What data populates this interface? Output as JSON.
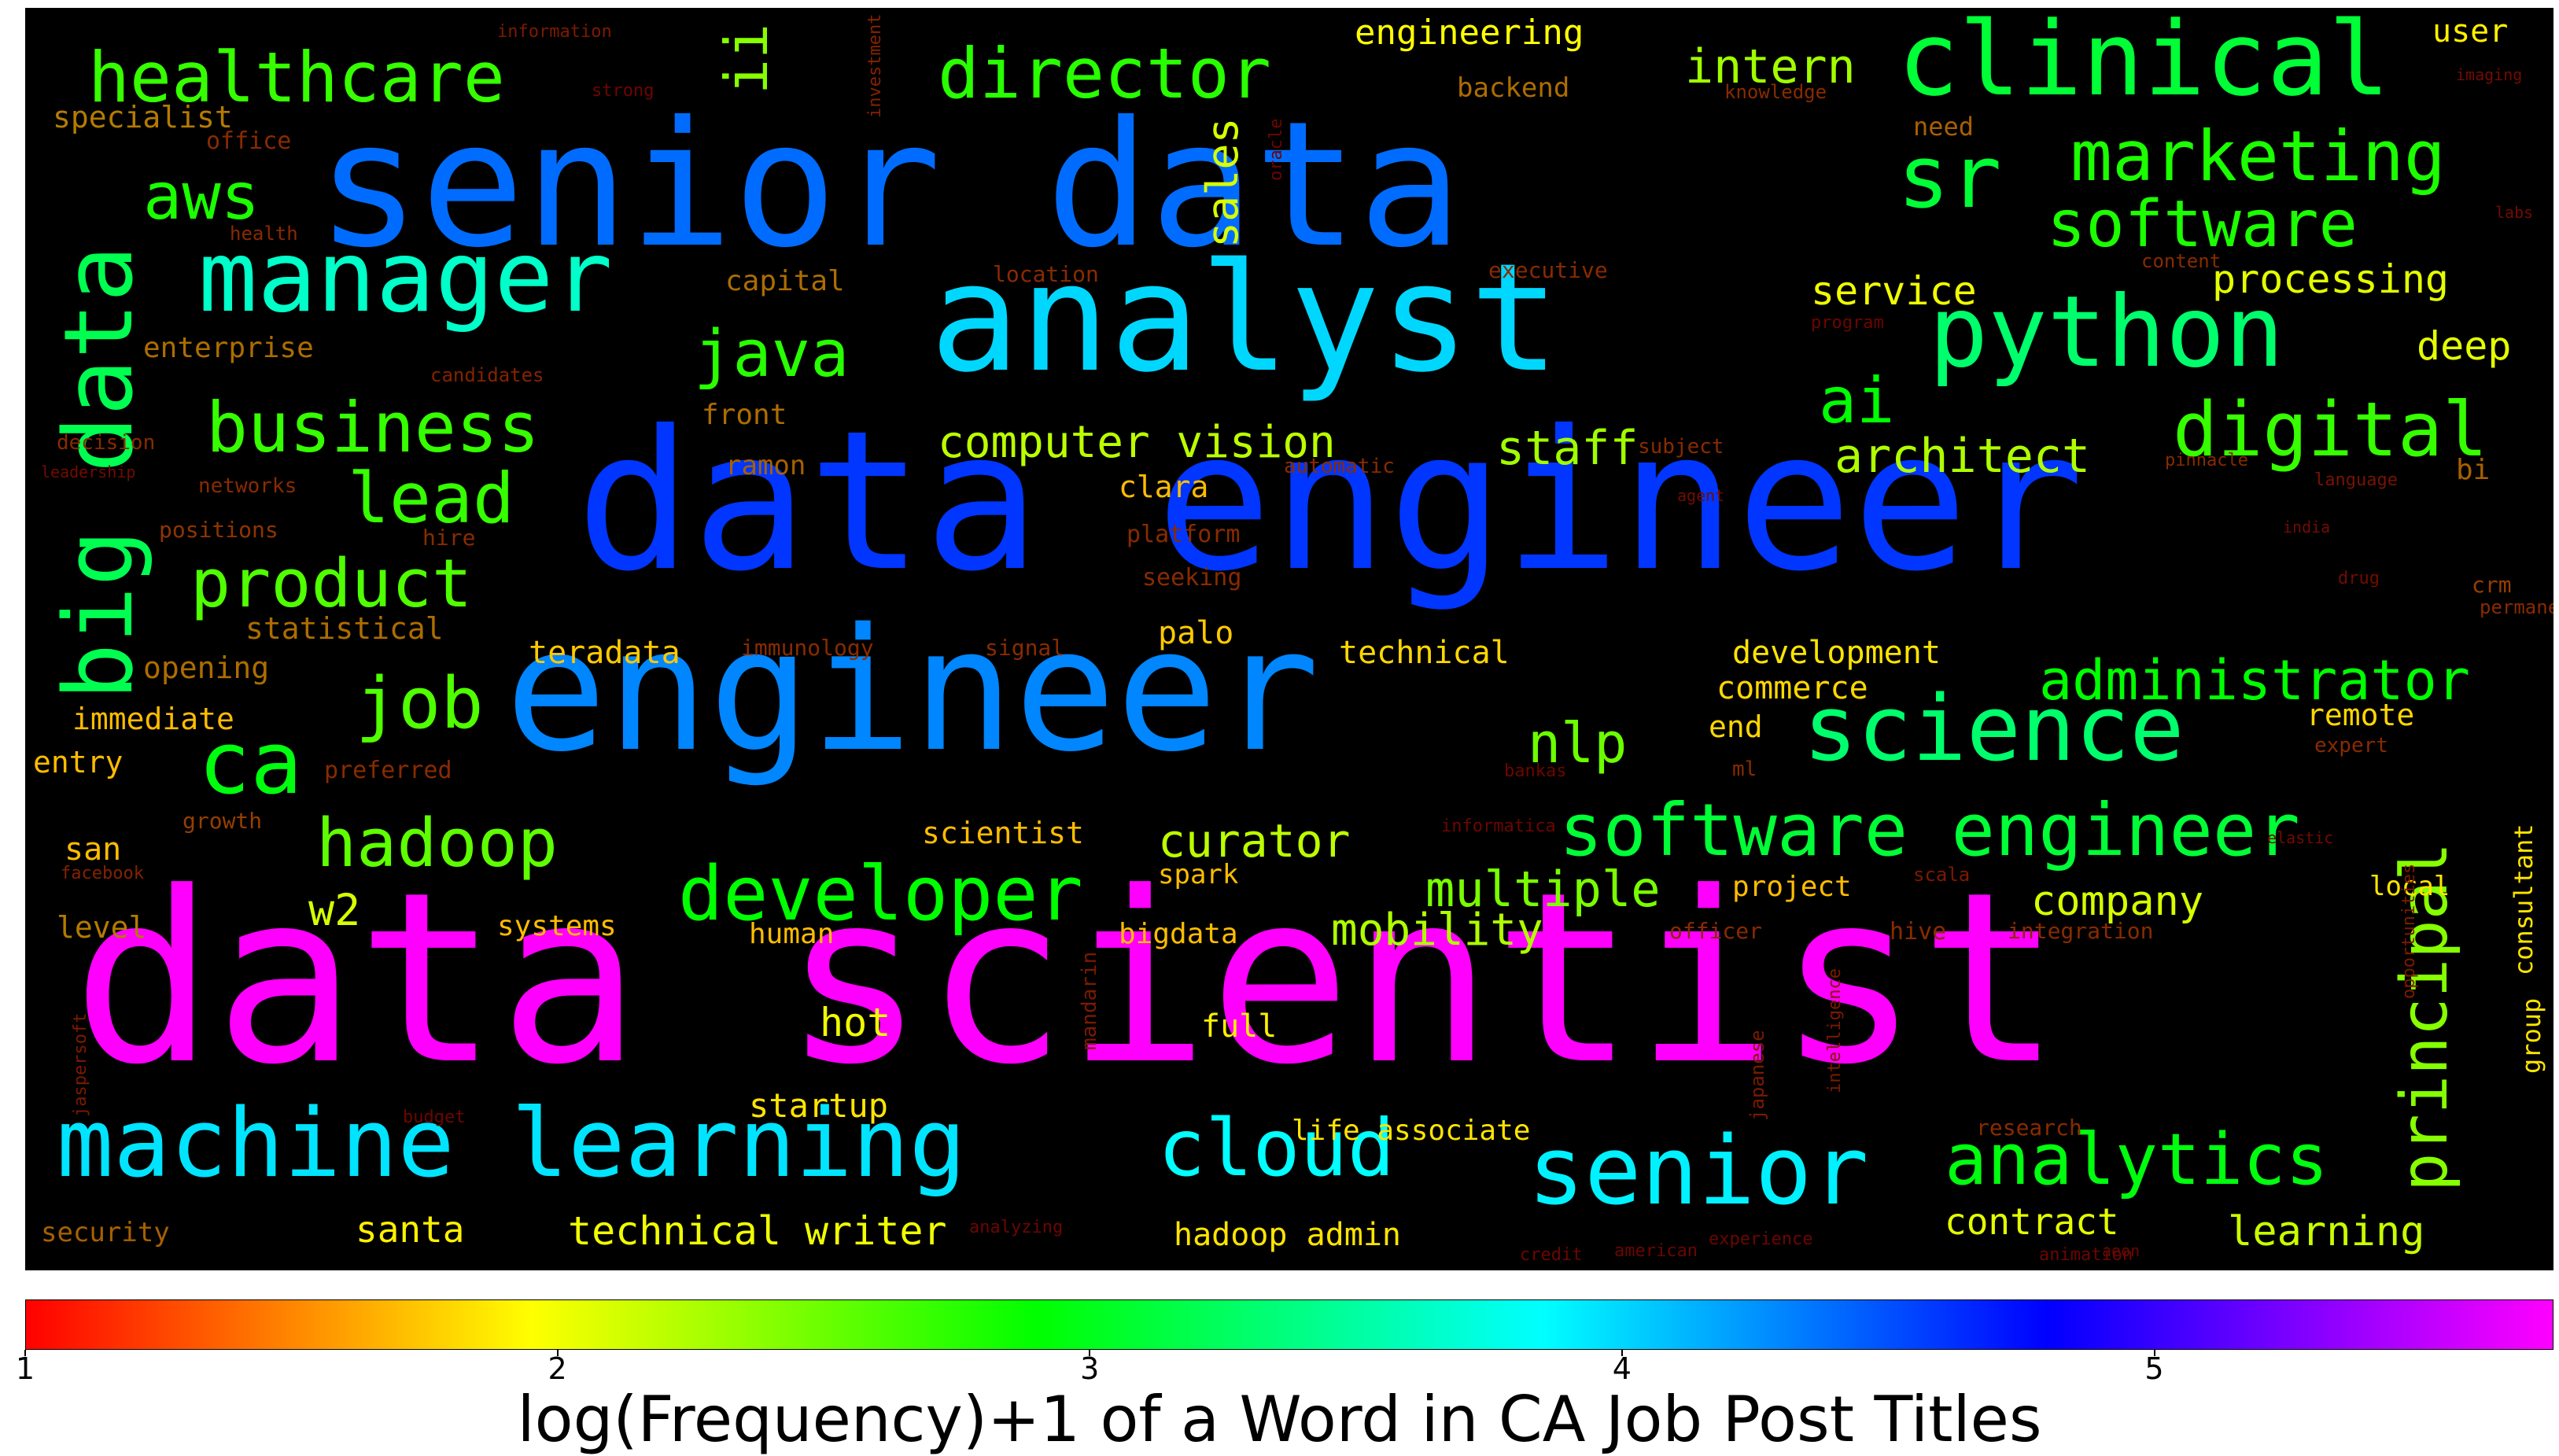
{
  "chart_data": {
    "type": "wordcloud",
    "colorbar": {
      "label": "log(Frequency)+1 of a Word in CA Job Post Titles",
      "min": 1,
      "max": 5.75,
      "ticks": [
        1,
        2,
        3,
        4,
        5
      ],
      "colormap": "hsv"
    },
    "words": [
      {
        "text": "data scientist",
        "value": 5.75
      },
      {
        "text": "data engineer",
        "value": 4.6
      },
      {
        "text": "senior data",
        "value": 4.4
      },
      {
        "text": "engineer",
        "value": 4.3
      },
      {
        "text": "analyst",
        "value": 4.0
      },
      {
        "text": "machine learning",
        "value": 3.95
      },
      {
        "text": "senior",
        "value": 3.9
      },
      {
        "text": "cloud",
        "value": 3.85
      },
      {
        "text": "manager",
        "value": 3.65
      },
      {
        "text": "big data",
        "value": 3.2
      },
      {
        "text": "python",
        "value": 3.3
      },
      {
        "text": "sr",
        "value": 3.1
      },
      {
        "text": "clinical",
        "value": 3.1
      },
      {
        "text": "science",
        "value": 3.3
      },
      {
        "text": "software engineer",
        "value": 3.1
      },
      {
        "text": "analytics",
        "value": 2.95
      },
      {
        "text": "ca",
        "value": 2.95
      },
      {
        "text": "developer",
        "value": 2.9
      },
      {
        "text": "marketing",
        "value": 2.8
      },
      {
        "text": "software",
        "value": 2.8
      },
      {
        "text": "digital",
        "value": 2.7
      },
      {
        "text": "administrator",
        "value": 2.9
      },
      {
        "text": "business",
        "value": 2.7
      },
      {
        "text": "healthcare",
        "value": 2.7
      },
      {
        "text": "director",
        "value": 2.75
      },
      {
        "text": "aws",
        "value": 2.8
      },
      {
        "text": "java",
        "value": 2.75
      },
      {
        "text": "ai",
        "value": 2.9
      },
      {
        "text": "lead",
        "value": 2.7
      },
      {
        "text": "product",
        "value": 2.6
      },
      {
        "text": "job",
        "value": 2.6
      },
      {
        "text": "hadoop",
        "value": 2.55
      },
      {
        "text": "nlp",
        "value": 2.5
      },
      {
        "text": "multiple",
        "value": 2.45
      },
      {
        "text": "mobility",
        "value": 2.25
      },
      {
        "text": "principal",
        "value": 2.4
      },
      {
        "text": "ii",
        "value": 2.4
      },
      {
        "text": "staff",
        "value": 2.3
      },
      {
        "text": "architect",
        "value": 2.25
      },
      {
        "text": "computer vision",
        "value": 2.2
      },
      {
        "text": "curator",
        "value": 2.2
      },
      {
        "text": "company",
        "value": 2.1
      },
      {
        "text": "intern",
        "value": 2.3
      },
      {
        "text": "sales",
        "value": 2.1
      },
      {
        "text": "learning",
        "value": 2.15
      },
      {
        "text": "technical writer",
        "value": 2.0
      },
      {
        "text": "contract",
        "value": 2.05
      },
      {
        "text": "w2",
        "value": 2.1
      },
      {
        "text": "hot",
        "value": 2.0
      },
      {
        "text": "service",
        "value": 2.0
      },
      {
        "text": "processing",
        "value": 2.05
      },
      {
        "text": "deep",
        "value": 2.05
      },
      {
        "text": "santa",
        "value": 1.9
      },
      {
        "text": "engineering",
        "value": 1.95
      },
      {
        "text": "user",
        "value": 1.9
      },
      {
        "text": "hadoop admin",
        "value": 1.85
      },
      {
        "text": "life associate",
        "value": 1.85
      },
      {
        "text": "full",
        "value": 1.9
      },
      {
        "text": "startup",
        "value": 1.85
      },
      {
        "text": "consultant",
        "value": 1.85
      },
      {
        "text": "group",
        "value": 1.85
      },
      {
        "text": "local",
        "value": 1.85
      },
      {
        "text": "development",
        "value": 1.85
      },
      {
        "text": "commerce",
        "value": 1.8
      },
      {
        "text": "end",
        "value": 1.8
      },
      {
        "text": "remote",
        "value": 1.8
      },
      {
        "text": "technical",
        "value": 1.8
      },
      {
        "text": "teradata",
        "value": 1.75
      },
      {
        "text": "palo",
        "value": 1.75
      },
      {
        "text": "clara",
        "value": 1.7
      },
      {
        "text": "scientist",
        "value": 1.7
      },
      {
        "text": "spark",
        "value": 1.7
      },
      {
        "text": "human",
        "value": 1.7
      },
      {
        "text": "bigdata",
        "value": 1.7
      },
      {
        "text": "project",
        "value": 1.7
      },
      {
        "text": "systems",
        "value": 1.7
      },
      {
        "text": "level",
        "value": 1.65
      },
      {
        "text": "san",
        "value": 1.7
      },
      {
        "text": "entry",
        "value": 1.7
      },
      {
        "text": "immediate",
        "value": 1.7
      },
      {
        "text": "opening",
        "value": 1.6
      },
      {
        "text": "statistical",
        "value": 1.6
      },
      {
        "text": "specialist",
        "value": 1.65
      },
      {
        "text": "enterprise",
        "value": 1.6
      },
      {
        "text": "capital",
        "value": 1.6
      },
      {
        "text": "front",
        "value": 1.6
      },
      {
        "text": "ramon",
        "value": 1.55
      },
      {
        "text": "backend",
        "value": 1.6
      },
      {
        "text": "need",
        "value": 1.55
      },
      {
        "text": "security",
        "value": 1.55
      },
      {
        "text": "bi",
        "value": 1.55
      },
      {
        "text": "crm",
        "value": 1.4
      },
      {
        "text": "growth",
        "value": 1.4
      },
      {
        "text": "positions",
        "value": 1.35
      },
      {
        "text": "hire",
        "value": 1.3
      },
      {
        "text": "preferred",
        "value": 1.3
      },
      {
        "text": "platform",
        "value": 1.3
      },
      {
        "text": "seeking",
        "value": 1.3
      },
      {
        "text": "signal",
        "value": 1.3
      },
      {
        "text": "immunology",
        "value": 1.3
      },
      {
        "text": "location",
        "value": 1.3
      },
      {
        "text": "executive",
        "value": 1.3
      },
      {
        "text": "content",
        "value": 1.3
      },
      {
        "text": "office",
        "value": 1.3
      },
      {
        "text": "health",
        "value": 1.3
      },
      {
        "text": "knowledge",
        "value": 1.3
      },
      {
        "text": "automatic",
        "value": 1.3
      },
      {
        "text": "subject",
        "value": 1.3
      },
      {
        "text": "pinnacle",
        "value": 1.3
      },
      {
        "text": "permanent",
        "value": 1.3
      },
      {
        "text": "ml",
        "value": 1.3
      },
      {
        "text": "expert",
        "value": 1.3
      },
      {
        "text": "officer",
        "value": 1.3
      },
      {
        "text": "hive",
        "value": 1.3
      },
      {
        "text": "integration",
        "value": 1.3
      },
      {
        "text": "research",
        "value": 1.3
      },
      {
        "text": "networks",
        "value": 1.3
      },
      {
        "text": "decision",
        "value": 1.3
      },
      {
        "text": "candidates",
        "value": 1.25
      },
      {
        "text": "investment",
        "value": 1.25
      },
      {
        "text": "information",
        "value": 1.2
      },
      {
        "text": "facebook",
        "value": 1.25
      },
      {
        "text": "jaspersoft",
        "value": 1.2
      },
      {
        "text": "opportunities",
        "value": 1.2
      },
      {
        "text": "intelligence",
        "value": 1.2
      },
      {
        "text": "mandarin",
        "value": 1.2
      },
      {
        "text": "japanese",
        "value": 1.2
      },
      {
        "text": "scala",
        "value": 1.2
      },
      {
        "text": "language",
        "value": 1.15
      },
      {
        "text": "leadership",
        "value": 1.1
      },
      {
        "text": "imaging",
        "value": 1.1
      },
      {
        "text": "labs",
        "value": 1.1
      },
      {
        "text": "agent",
        "value": 1.1
      },
      {
        "text": "drug",
        "value": 1.1
      },
      {
        "text": "india",
        "value": 1.1
      },
      {
        "text": "elastic",
        "value": 1.1
      },
      {
        "text": "aeon",
        "value": 1.05
      },
      {
        "text": "american",
        "value": 1.05
      },
      {
        "text": "animation",
        "value": 1.05
      },
      {
        "text": "credit",
        "value": 1.05
      },
      {
        "text": "bankas",
        "value": 1.05
      },
      {
        "text": "strong",
        "value": 1.05
      },
      {
        "text": "budget",
        "value": 1.05
      },
      {
        "text": "informatica",
        "value": 1.05
      },
      {
        "text": "program",
        "value": 1.05
      },
      {
        "text": "experience",
        "value": 1.05
      },
      {
        "text": "analyzing",
        "value": 1.05
      },
      {
        "text": "oracle",
        "value": 1.05
      }
    ]
  }
}
